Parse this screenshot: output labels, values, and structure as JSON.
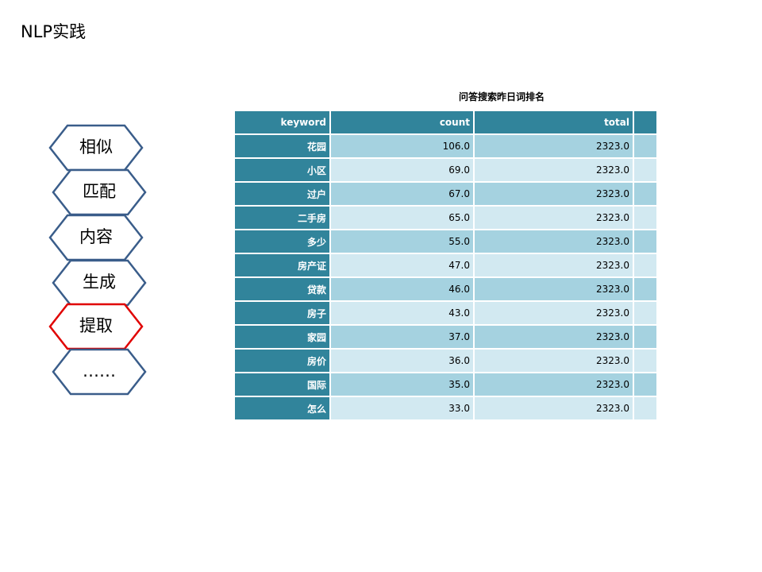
{
  "slide": {
    "title": "NLP实践"
  },
  "nav": {
    "items": [
      {
        "label": "相似",
        "highlight": false
      },
      {
        "label": "匹配",
        "highlight": false
      },
      {
        "label": "内容",
        "highlight": false
      },
      {
        "label": "生成",
        "highlight": false
      },
      {
        "label": "提取",
        "highlight": true
      },
      {
        "label": "……",
        "highlight": false
      }
    ],
    "border_color": "#3a5d8a",
    "highlight_color": "#e00000"
  },
  "table": {
    "title": "问答搜索昨日词排名",
    "columns": [
      "keyword",
      "count",
      "total"
    ],
    "rows": [
      {
        "keyword": "花园",
        "count": "106.0",
        "total": "2323.0"
      },
      {
        "keyword": "小区",
        "count": "69.0",
        "total": "2323.0"
      },
      {
        "keyword": "过户",
        "count": "67.0",
        "total": "2323.0"
      },
      {
        "keyword": "二手房",
        "count": "65.0",
        "total": "2323.0"
      },
      {
        "keyword": "多少",
        "count": "55.0",
        "total": "2323.0"
      },
      {
        "keyword": "房产证",
        "count": "47.0",
        "total": "2323.0"
      },
      {
        "keyword": "贷款",
        "count": "46.0",
        "total": "2323.0"
      },
      {
        "keyword": "房子",
        "count": "43.0",
        "total": "2323.0"
      },
      {
        "keyword": "家园",
        "count": "37.0",
        "total": "2323.0"
      },
      {
        "keyword": "房价",
        "count": "36.0",
        "total": "2323.0"
      },
      {
        "keyword": "国际",
        "count": "35.0",
        "total": "2323.0"
      },
      {
        "keyword": "怎么",
        "count": "33.0",
        "total": "2323.0"
      }
    ],
    "header_color": "#31849b",
    "row_color_a": "#a5d2e0",
    "row_color_b": "#d2e9f1"
  }
}
